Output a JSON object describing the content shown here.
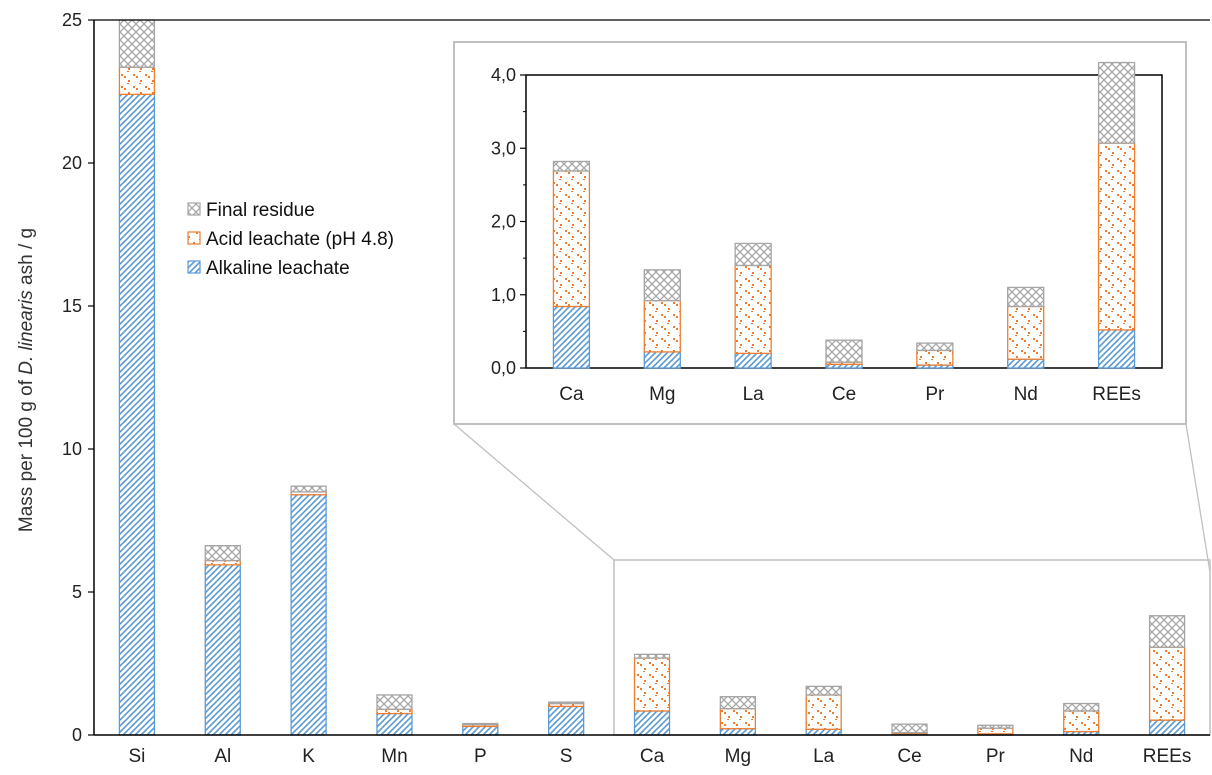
{
  "colors": {
    "alkaline": "#5B9BD5",
    "acid": "#ED7D31",
    "residue": "#A5A5A5",
    "axis": "#000000",
    "zoom_frame": "#C0C0C0"
  },
  "chart_data": [
    {
      "type": "bar",
      "stacked": true,
      "categories": [
        "Si",
        "Al",
        "K",
        "Mn",
        "P",
        "S",
        "Ca",
        "Mg",
        "La",
        "Ce",
        "Pr",
        "Nd",
        "REEs"
      ],
      "series": [
        {
          "name": "Alkaline leachate",
          "pattern": "diagonal-hatch",
          "values": [
            22.4,
            5.95,
            8.4,
            0.75,
            0.3,
            1.0,
            0.84,
            0.22,
            0.2,
            0.05,
            0.04,
            0.12,
            0.52
          ]
        },
        {
          "name": "Acid leachate (pH 4.8)",
          "pattern": "dots",
          "values": [
            0.95,
            0.15,
            0.1,
            0.15,
            0.06,
            0.1,
            1.85,
            0.7,
            1.2,
            0.03,
            0.2,
            0.72,
            2.55
          ]
        },
        {
          "name": "Final residue",
          "pattern": "crosshatch",
          "values": [
            2.9,
            0.52,
            0.2,
            0.5,
            0.04,
            0.05,
            0.13,
            0.42,
            0.3,
            0.3,
            0.1,
            0.26,
            1.1
          ]
        }
      ],
      "ylabel_prefix": "Mass per 100 g of ",
      "ylabel_italic": "D. linearis",
      "ylabel_suffix": " ash / g",
      "ylim": [
        0,
        25
      ],
      "yticks": [
        "0",
        "5",
        "10",
        "15",
        "20",
        "25"
      ],
      "legend_order": [
        "Final residue",
        "Acid leachate (pH 4.8)",
        "Alkaline leachate"
      ],
      "legend_position": "upper-left",
      "grid": false
    },
    {
      "type": "bar",
      "stacked": true,
      "role": "inset zoom of the last seven categories",
      "categories": [
        "Ca",
        "Mg",
        "La",
        "Ce",
        "Pr",
        "Nd",
        "REEs"
      ],
      "ylim": [
        0,
        4.0
      ],
      "yticks": [
        "0,0",
        "1,0",
        "2,0",
        "3,0",
        "4,0"
      ],
      "grid": false
    }
  ]
}
